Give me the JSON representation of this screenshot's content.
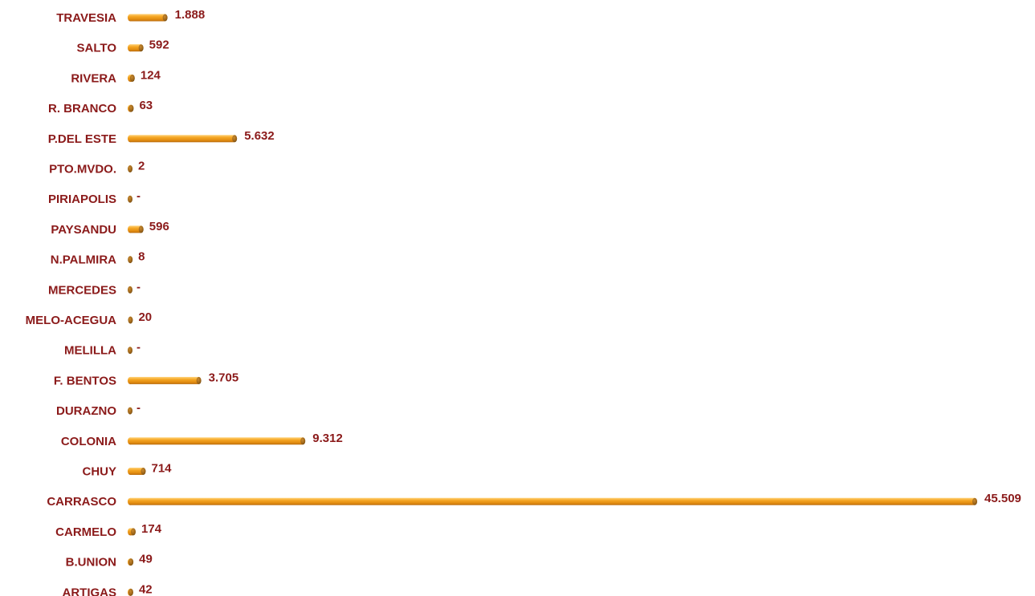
{
  "chart_data": {
    "type": "bar",
    "orientation": "horizontal",
    "title": "",
    "xlabel": "",
    "ylabel": "",
    "grid": false,
    "legend": "none",
    "xlim": [
      0,
      45509
    ],
    "categories": [
      "TRAVESIA",
      "SALTO",
      "RIVERA",
      "R. BRANCO",
      "P.DEL ESTE",
      "PTO.MVDO.",
      "PIRIAPOLIS",
      "PAYSANDU",
      "N.PALMIRA",
      "MERCEDES",
      "MELO-ACEGUA",
      "MELILLA",
      "F. BENTOS",
      "DURAZNO",
      "COLONIA",
      "CHUY",
      "CARRASCO",
      "CARMELO",
      "B.UNION",
      "ARTIGAS"
    ],
    "values": [
      1888,
      592,
      124,
      63,
      5632,
      2,
      0,
      596,
      8,
      0,
      20,
      0,
      3705,
      0,
      9312,
      714,
      45509,
      174,
      49,
      42
    ],
    "value_labels": [
      "1.888",
      "592",
      "124",
      "63",
      "5.632",
      "2",
      "-",
      "596",
      "8",
      "-",
      "20",
      "-",
      "3.705",
      "-",
      "9.312",
      "714",
      "45.509",
      "174",
      "49",
      "42"
    ],
    "colors": {
      "label": "#8b1a1a",
      "bar_main": "#f0a020",
      "bar_highlight": "#ffd278",
      "bar_shadow": "#b86a0c",
      "bar_cap": "#9c6418",
      "bar_cap_dark": "#5a3a0a"
    }
  }
}
